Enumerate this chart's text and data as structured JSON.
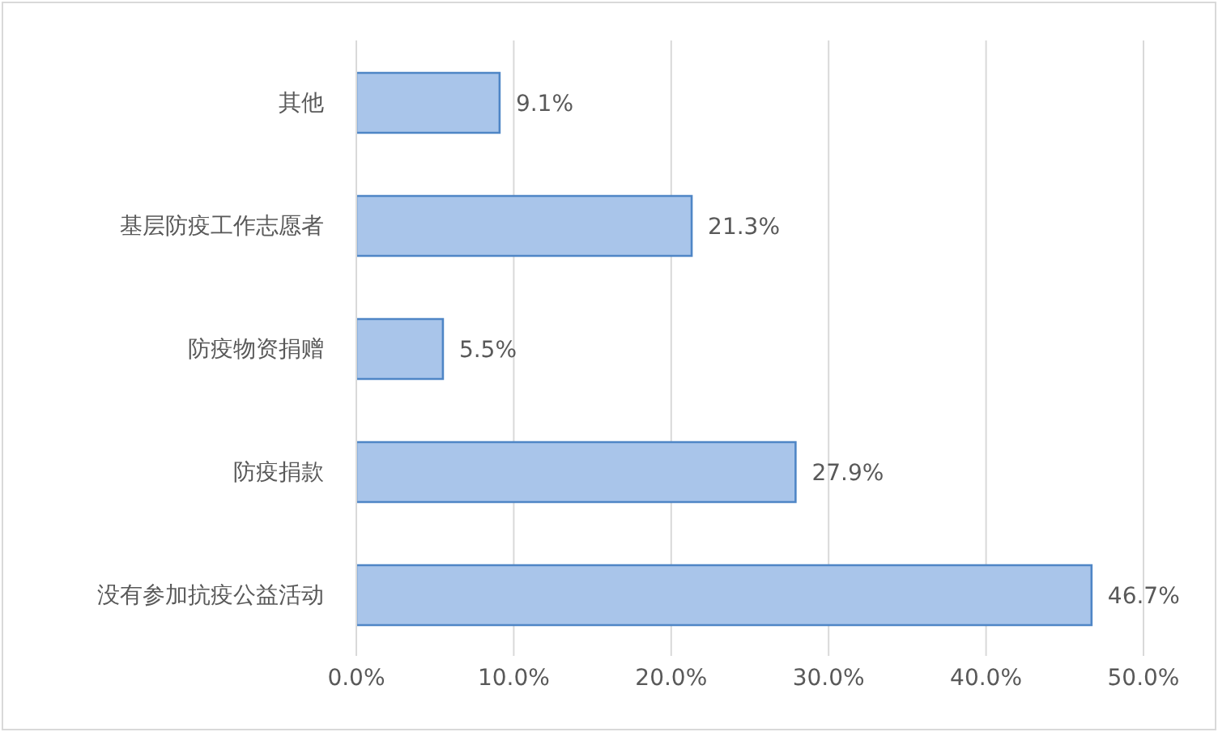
{
  "chart_data": {
    "type": "bar",
    "orientation": "horizontal",
    "categories": [
      "其他",
      "基层防疫工作志愿者",
      "防疫物资捐赠",
      "防疫捐款",
      "没有参加抗疫公益活动"
    ],
    "values": [
      9.1,
      21.3,
      5.5,
      27.9,
      46.7
    ],
    "value_labels": [
      "9.1%",
      "21.3%",
      "5.5%",
      "27.9%",
      "46.7%"
    ],
    "color": "#a9c5ea",
    "xlim": [
      0,
      50
    ],
    "xticks": [
      {
        "value": 0,
        "label": "0.0%"
      },
      {
        "value": 10,
        "label": "10.0%"
      },
      {
        "value": 20,
        "label": "20.0%"
      },
      {
        "value": 30,
        "label": "30.0%"
      },
      {
        "value": 40,
        "label": "40.0%"
      },
      {
        "value": 50,
        "label": "50.0%"
      }
    ],
    "grid": "x",
    "legend": false
  }
}
